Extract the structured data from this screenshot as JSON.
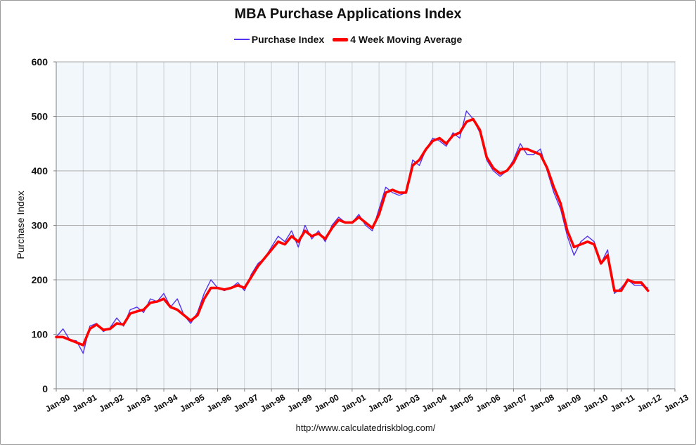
{
  "chart_data": {
    "type": "line",
    "title": "MBA Purchase Applications Index",
    "ylabel": "Purchase Index",
    "xlabel": "",
    "source": "http://www.calculatedriskblog.com/",
    "ylim": [
      0,
      600
    ],
    "yticks": [
      0,
      100,
      200,
      300,
      400,
      500,
      600
    ],
    "xlim": [
      1990,
      2013
    ],
    "xticks": [
      "Jan-90",
      "Jan-91",
      "Jan-92",
      "Jan-93",
      "Jan-94",
      "Jan-95",
      "Jan-96",
      "Jan-97",
      "Jan-98",
      "Jan-99",
      "Jan-00",
      "Jan-01",
      "Jan-02",
      "Jan-03",
      "Jan-04",
      "Jan-05",
      "Jan-06",
      "Jan-07",
      "Jan-08",
      "Jan-09",
      "Jan-10",
      "Jan-11",
      "Jan-12",
      "Jan-13"
    ],
    "grid": true,
    "legend_placement": "top-center",
    "colors": {
      "purchase_index": "#5533ee",
      "moving_average": "#ff0000",
      "plot_background": "#f2f7fb",
      "grid": "#a9a9a9"
    },
    "series": [
      {
        "name": "Purchase Index",
        "x": [
          1990.0,
          1990.25,
          1990.5,
          1990.75,
          1991.0,
          1991.25,
          1991.5,
          1991.75,
          1992.0,
          1992.25,
          1992.5,
          1992.75,
          1993.0,
          1993.25,
          1993.5,
          1993.75,
          1994.0,
          1994.25,
          1994.5,
          1994.75,
          1995.0,
          1995.25,
          1995.5,
          1995.75,
          1996.0,
          1996.25,
          1996.5,
          1996.75,
          1997.0,
          1997.25,
          1997.5,
          1997.75,
          1998.0,
          1998.25,
          1998.5,
          1998.75,
          1999.0,
          1999.25,
          1999.5,
          1999.75,
          2000.0,
          2000.25,
          2000.5,
          2000.75,
          2001.0,
          2001.25,
          2001.5,
          2001.75,
          2002.0,
          2002.25,
          2002.5,
          2002.75,
          2003.0,
          2003.25,
          2003.5,
          2003.75,
          2004.0,
          2004.25,
          2004.5,
          2004.75,
          2005.0,
          2005.25,
          2005.5,
          2005.75,
          2006.0,
          2006.25,
          2006.5,
          2006.75,
          2007.0,
          2007.25,
          2007.5,
          2007.75,
          2008.0,
          2008.25,
          2008.5,
          2008.75,
          2009.0,
          2009.25,
          2009.5,
          2009.75,
          2010.0,
          2010.25,
          2010.5,
          2010.75,
          2011.0,
          2011.25,
          2011.5,
          2011.75,
          2012.0
        ],
        "values": [
          95,
          110,
          90,
          88,
          65,
          115,
          120,
          105,
          112,
          130,
          115,
          145,
          150,
          140,
          165,
          160,
          175,
          150,
          165,
          135,
          120,
          140,
          175,
          200,
          185,
          180,
          185,
          195,
          180,
          210,
          230,
          240,
          260,
          280,
          270,
          290,
          260,
          300,
          275,
          290,
          270,
          300,
          315,
          305,
          305,
          320,
          300,
          290,
          330,
          370,
          360,
          355,
          360,
          420,
          410,
          440,
          460,
          455,
          445,
          470,
          460,
          510,
          495,
          470,
          420,
          400,
          390,
          400,
          420,
          450,
          430,
          430,
          440,
          400,
          360,
          330,
          280,
          245,
          270,
          280,
          270,
          230,
          255,
          175,
          185,
          200,
          190,
          190,
          185
        ]
      },
      {
        "name": "4 Week Moving Average",
        "x": [
          1990.0,
          1990.25,
          1990.5,
          1990.75,
          1991.0,
          1991.25,
          1991.5,
          1991.75,
          1992.0,
          1992.25,
          1992.5,
          1992.75,
          1993.0,
          1993.25,
          1993.5,
          1993.75,
          1994.0,
          1994.25,
          1994.5,
          1994.75,
          1995.0,
          1995.25,
          1995.5,
          1995.75,
          1996.0,
          1996.25,
          1996.5,
          1996.75,
          1997.0,
          1997.25,
          1997.5,
          1997.75,
          1998.0,
          1998.25,
          1998.5,
          1998.75,
          1999.0,
          1999.25,
          1999.5,
          1999.75,
          2000.0,
          2000.25,
          2000.5,
          2000.75,
          2001.0,
          2001.25,
          2001.5,
          2001.75,
          2002.0,
          2002.25,
          2002.5,
          2002.75,
          2003.0,
          2003.25,
          2003.5,
          2003.75,
          2004.0,
          2004.25,
          2004.5,
          2004.75,
          2005.0,
          2005.25,
          2005.5,
          2005.75,
          2006.0,
          2006.25,
          2006.5,
          2006.75,
          2007.0,
          2007.25,
          2007.5,
          2007.75,
          2008.0,
          2008.25,
          2008.5,
          2008.75,
          2009.0,
          2009.25,
          2009.5,
          2009.75,
          2010.0,
          2010.25,
          2010.5,
          2010.75,
          2011.0,
          2011.25,
          2011.5,
          2011.75,
          2012.0
        ],
        "values": [
          95,
          95,
          90,
          85,
          80,
          110,
          118,
          108,
          110,
          120,
          118,
          138,
          142,
          145,
          158,
          160,
          165,
          150,
          145,
          135,
          125,
          135,
          165,
          185,
          185,
          182,
          185,
          190,
          185,
          205,
          225,
          240,
          255,
          270,
          265,
          280,
          270,
          290,
          280,
          285,
          275,
          295,
          310,
          305,
          305,
          315,
          305,
          295,
          320,
          360,
          365,
          360,
          360,
          410,
          420,
          440,
          455,
          460,
          450,
          465,
          470,
          490,
          495,
          475,
          425,
          405,
          395,
          400,
          415,
          440,
          440,
          435,
          430,
          405,
          370,
          340,
          290,
          260,
          265,
          270,
          265,
          230,
          245,
          180,
          180,
          200,
          195,
          195,
          180
        ]
      }
    ]
  }
}
